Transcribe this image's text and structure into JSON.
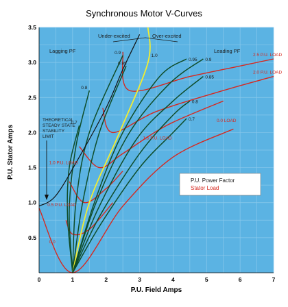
{
  "chart_data": {
    "type": "line",
    "title": "Synchronous Motor  V-Curves",
    "xlabel": "P.U. Field Amps",
    "ylabel": "P.U. Stator Amps",
    "xlim": [
      0,
      7
    ],
    "ylim": [
      0,
      3.5
    ],
    "x_ticks": [
      "0",
      "1",
      "2",
      "3",
      "4",
      "5",
      "6",
      "7"
    ],
    "y_ticks": [
      "0.5",
      "1.0",
      "1.5",
      "2.0",
      "2.5",
      "3.0",
      "3.5"
    ],
    "grid": true,
    "colors": {
      "plot_bg": "#5bb3e3",
      "grid": "#8ac9ec",
      "pf_curve": "#0f4d2a",
      "unity_pf": "#f4ee2e",
      "load_curve": "#d6281f",
      "stability_limit": "#111111"
    },
    "region_labels": {
      "lagging": "Lagging PF",
      "leading": "Leading PF",
      "under_excited": "Under-excited",
      "over_excited": "Over-excited"
    },
    "stability_limit_label": [
      "THEORETICAL",
      "STEADY STATE",
      "STABILITY",
      "LIMIT"
    ],
    "power_factor_curves": [
      {
        "label": "0.7",
        "side": "lagging",
        "points": [
          [
            1.0,
            0.0
          ],
          [
            0.85,
            0.8
          ],
          [
            0.9,
            1.5
          ],
          [
            1.2,
            2.1
          ]
        ]
      },
      {
        "label": "0.8",
        "side": "lagging",
        "points": [
          [
            1.0,
            0.0
          ],
          [
            0.9,
            0.9
          ],
          [
            1.1,
            1.8
          ],
          [
            1.5,
            2.6
          ]
        ]
      },
      {
        "label": "0.9",
        "side": "lagging",
        "points": [
          [
            1.0,
            0.0
          ],
          [
            1.1,
            1.0
          ],
          [
            1.5,
            2.0
          ],
          [
            2.5,
            3.1
          ]
        ]
      },
      {
        "label": "0.95",
        "side": "lagging",
        "points": [
          [
            1.0,
            0.0
          ],
          [
            1.3,
            1.0
          ],
          [
            1.8,
            2.0
          ],
          [
            2.6,
            2.95
          ]
        ]
      },
      {
        "label": "1.0",
        "side": "unity",
        "points": [
          [
            1.0,
            0.0
          ],
          [
            1.5,
            1.0
          ],
          [
            2.4,
            2.0
          ],
          [
            3.25,
            3.0
          ],
          [
            3.25,
            3.5
          ]
        ]
      },
      {
        "label": "0.95",
        "side": "leading",
        "points": [
          [
            1.0,
            0.0
          ],
          [
            1.65,
            1.0
          ],
          [
            2.5,
            2.0
          ],
          [
            3.6,
            2.8
          ],
          [
            4.4,
            3.05
          ]
        ]
      },
      {
        "label": "0.9",
        "side": "leading",
        "points": [
          [
            1.0,
            0.0
          ],
          [
            1.7,
            1.0
          ],
          [
            2.7,
            2.0
          ],
          [
            3.9,
            2.7
          ],
          [
            4.9,
            3.05
          ]
        ]
      },
      {
        "label": "0.85",
        "side": "leading",
        "points": [
          [
            1.0,
            0.0
          ],
          [
            1.75,
            0.9
          ],
          [
            2.9,
            1.9
          ],
          [
            4.0,
            2.45
          ],
          [
            4.9,
            2.8
          ]
        ]
      },
      {
        "label": "0.8",
        "side": "leading",
        "points": [
          [
            1.0,
            0.0
          ],
          [
            1.8,
            0.8
          ],
          [
            3.0,
            1.7
          ],
          [
            4.0,
            2.25
          ],
          [
            4.5,
            2.45
          ]
        ]
      },
      {
        "label": "0.7",
        "side": "leading",
        "points": [
          [
            1.0,
            0.0
          ],
          [
            1.85,
            0.7
          ],
          [
            3.0,
            1.5
          ],
          [
            4.0,
            2.0
          ],
          [
            4.4,
            2.2
          ]
        ]
      }
    ],
    "load_curves": [
      {
        "label": "0.0 LOAD",
        "points": [
          [
            0.0,
            0.92
          ],
          [
            1.0,
            0.0
          ],
          [
            2.5,
            0.95
          ],
          [
            4.0,
            1.65
          ],
          [
            5.8,
            2.05
          ]
        ]
      },
      {
        "label": "0.5 P.U. LOAD",
        "points": [
          [
            0.8,
            0.75
          ],
          [
            1.0,
            0.55
          ],
          [
            1.5,
            0.62
          ],
          [
            2.2,
            1.0
          ]
        ]
      },
      {
        "label": "1.0 P.U. LOAD",
        "points": [
          [
            0.9,
            1.3
          ],
          [
            1.35,
            1.0
          ],
          [
            2.0,
            1.2
          ],
          [
            2.5,
            1.45
          ]
        ]
      },
      {
        "label": "1.5 P.U. LOAD",
        "points": [
          [
            1.2,
            1.8
          ],
          [
            1.8,
            1.5
          ],
          [
            2.5,
            1.7
          ],
          [
            3.8,
            2.1
          ],
          [
            5.5,
            2.45
          ]
        ]
      },
      {
        "label": "2.0 P.U. LOAD",
        "points": [
          [
            1.9,
            2.35
          ],
          [
            2.2,
            2.0
          ],
          [
            3.5,
            2.3
          ],
          [
            5.5,
            2.6
          ],
          [
            7.0,
            2.8
          ]
        ]
      },
      {
        "label": "2.5 P.U. LOAD",
        "points": [
          [
            2.5,
            3.15
          ],
          [
            2.7,
            2.6
          ],
          [
            4.5,
            2.8
          ],
          [
            6.0,
            2.95
          ],
          [
            7.0,
            3.05
          ]
        ]
      }
    ],
    "stability_limit": {
      "points": [
        [
          0.0,
          0.95
        ],
        [
          0.5,
          1.1
        ],
        [
          1.2,
          1.65
        ],
        [
          2.0,
          2.35
        ],
        [
          2.5,
          2.9
        ],
        [
          3.0,
          3.4
        ]
      ]
    },
    "legend": [
      "P.U. Power Factor",
      "Stator Load"
    ]
  }
}
